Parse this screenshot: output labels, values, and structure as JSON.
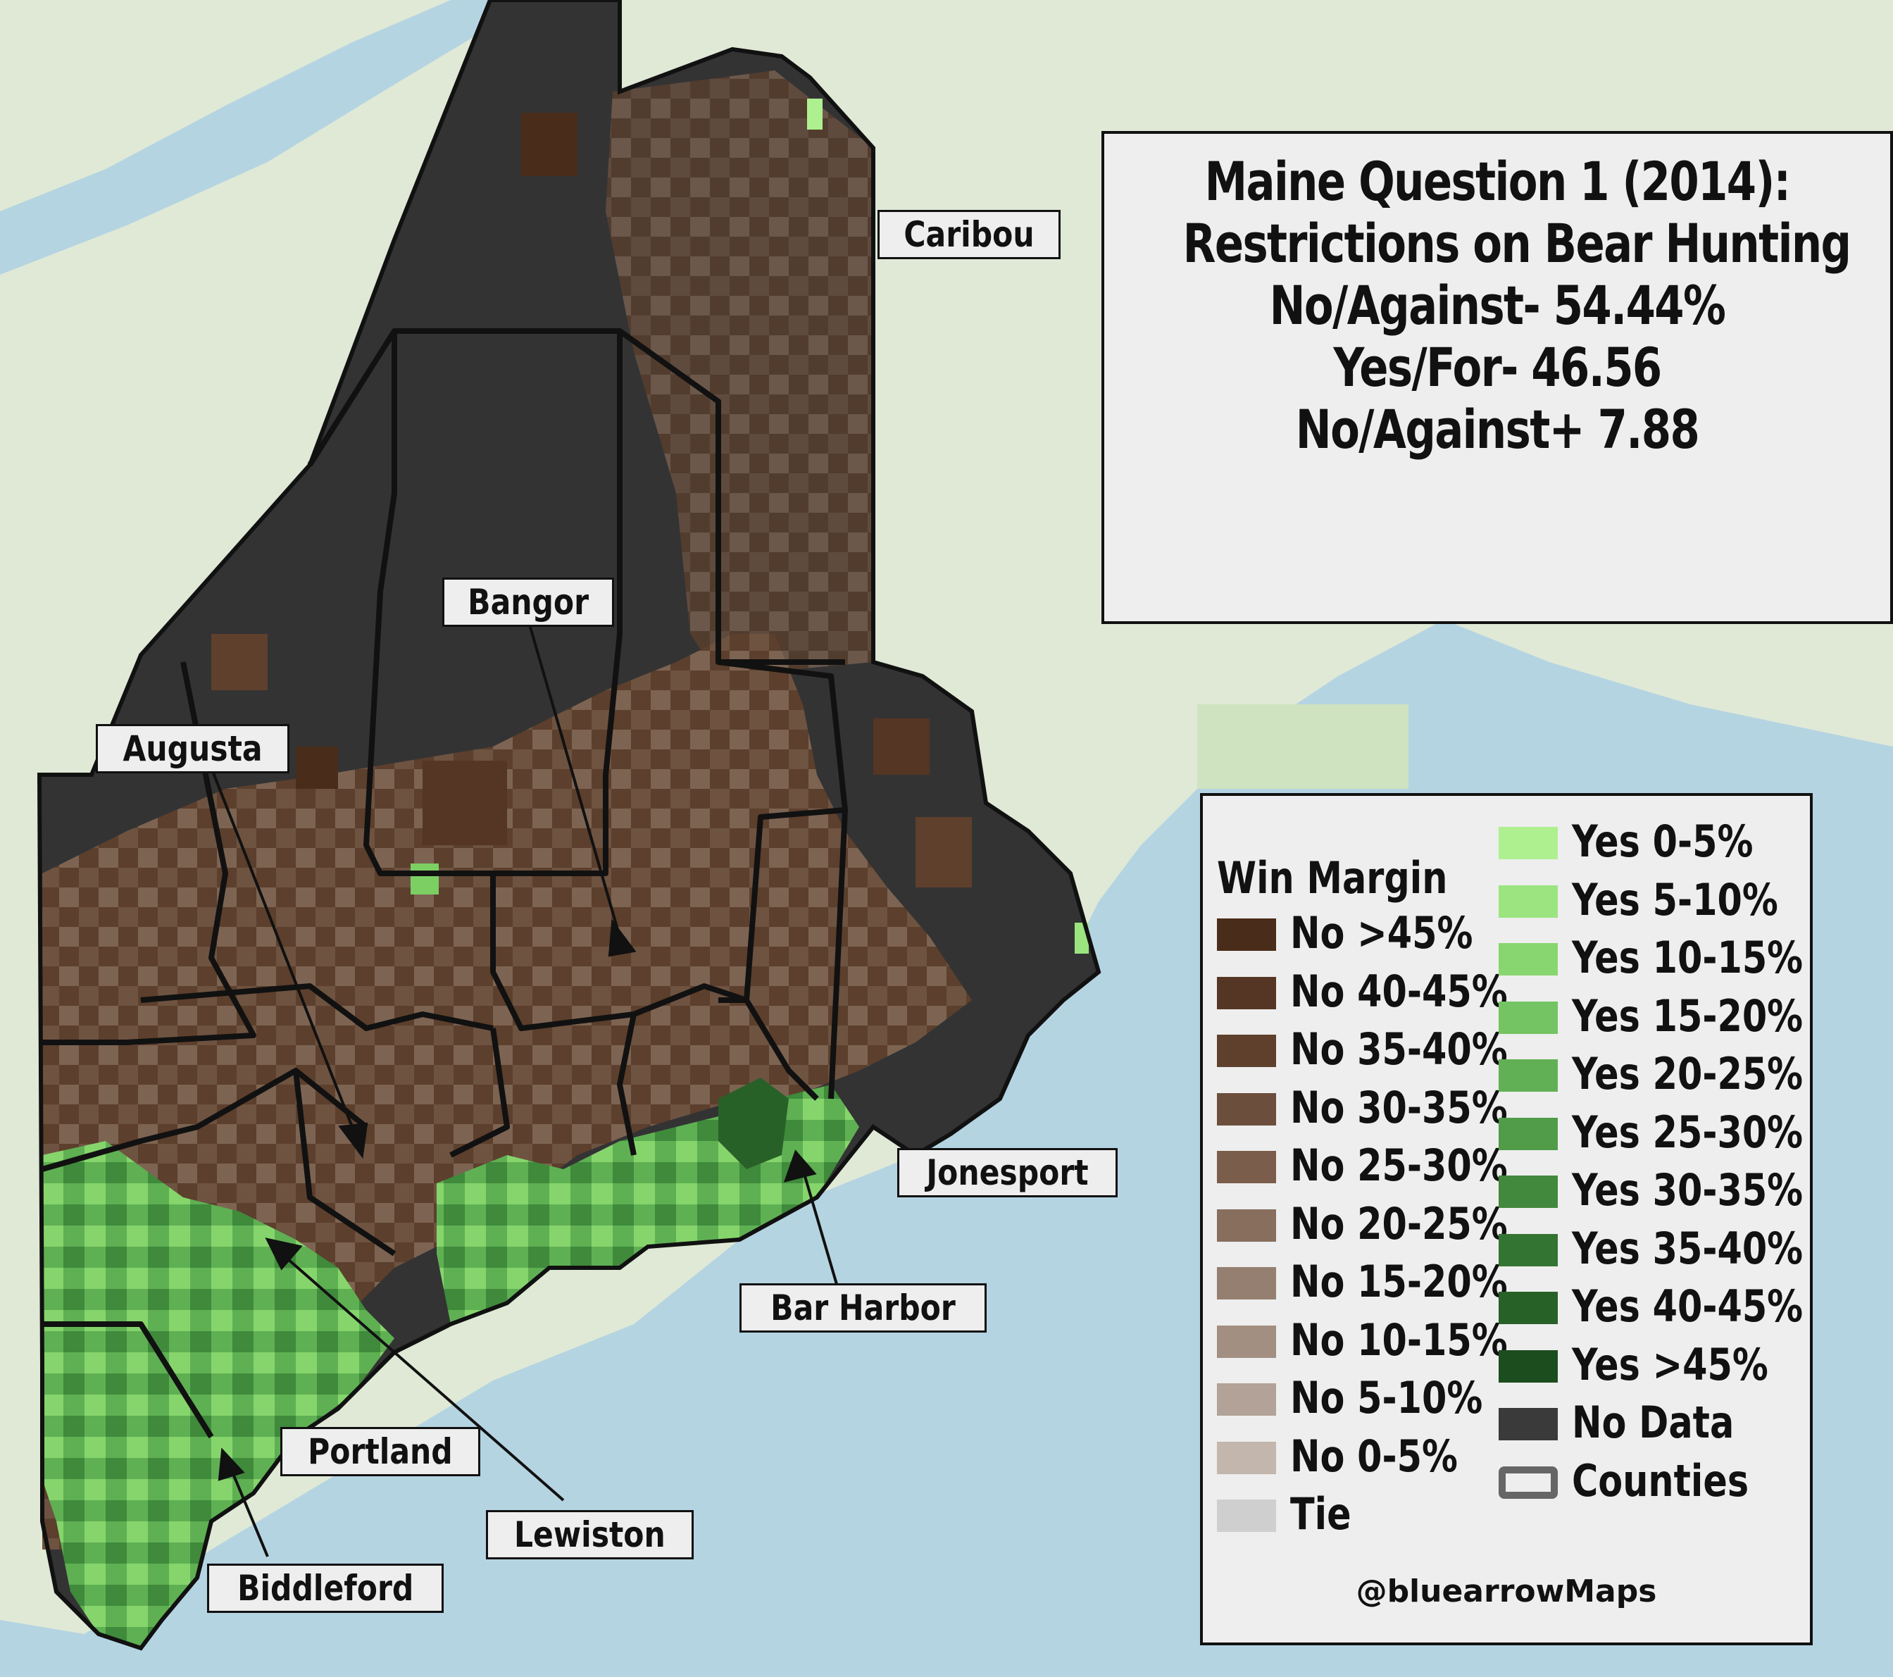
{
  "title": {
    "line1": "Maine Question 1 (2014):",
    "line2": "Restrictions on Bear Hunting",
    "line3": "No/Against- 54.44%",
    "line4": "Yes/For- 46.56",
    "line5": "No/Against+ 7.88"
  },
  "legend": {
    "title": "Win Margin",
    "items": [
      {
        "label": "No >45%",
        "color": "#4a2c1a"
      },
      {
        "label": "No 40-45%",
        "color": "#553523"
      },
      {
        "label": "No 35-40%",
        "color": "#5f402d"
      },
      {
        "label": "No 30-35%",
        "color": "#6b4e3b"
      },
      {
        "label": "No 25-30%",
        "color": "#7a5e4b"
      },
      {
        "label": "No 20-25%",
        "color": "#876e5d"
      },
      {
        "label": "No 15-20%",
        "color": "#957f70"
      },
      {
        "label": "No 10-15%",
        "color": "#a38f82"
      },
      {
        "label": "No 5-10%",
        "color": "#b2a297"
      },
      {
        "label": "No 0-5%",
        "color": "#c2b6ad"
      },
      {
        "label": "Tie",
        "color": "#cfcfcf"
      },
      {
        "label": "Yes 0-5%",
        "color": "#aef08f"
      },
      {
        "label": "Yes 5-10%",
        "color": "#9be47f"
      },
      {
        "label": "Yes 10-15%",
        "color": "#88d670"
      },
      {
        "label": "Yes 15-20%",
        "color": "#74c463"
      },
      {
        "label": "Yes 20-25%",
        "color": "#62b055"
      },
      {
        "label": "Yes 25-30%",
        "color": "#519c49"
      },
      {
        "label": "Yes 30-35%",
        "color": "#42883d"
      },
      {
        "label": "Yes 35-40%",
        "color": "#347432"
      },
      {
        "label": "Yes 40-45%",
        "color": "#286128"
      },
      {
        "label": "Yes >45%",
        "color": "#1c4d1f"
      },
      {
        "label": "No Data",
        "color": "#3a3a3a"
      },
      {
        "label": "Counties",
        "color": "#666666"
      }
    ],
    "credit": "@bluearrowMaps"
  },
  "cities": {
    "caribou": "Caribou",
    "bangor": "Bangor",
    "augusta": "Augusta",
    "jonesport": "Jonesport",
    "bar_harbor": "Bar Harbor",
    "portland": "Portland",
    "lewiston": "Lewiston",
    "biddleford": "Biddleford"
  }
}
